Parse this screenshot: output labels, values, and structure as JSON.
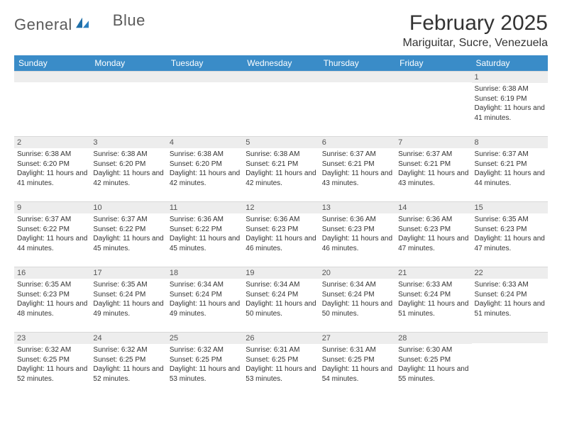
{
  "brand": {
    "word1": "General",
    "word2": "Blue"
  },
  "header": {
    "month_title": "February 2025",
    "location": "Mariguitar, Sucre, Venezuela"
  },
  "colors": {
    "header_bg": "#3a8cc8",
    "header_text": "#ffffff",
    "daynum_bg": "#ededed",
    "page_bg": "#ffffff",
    "text": "#333333"
  },
  "calendar": {
    "day_names": [
      "Sunday",
      "Monday",
      "Tuesday",
      "Wednesday",
      "Thursday",
      "Friday",
      "Saturday"
    ],
    "weeks": [
      [
        null,
        null,
        null,
        null,
        null,
        null,
        {
          "n": "1",
          "sr": "Sunrise: 6:38 AM",
          "ss": "Sunset: 6:19 PM",
          "dl": "Daylight: 11 hours and 41 minutes."
        }
      ],
      [
        {
          "n": "2",
          "sr": "Sunrise: 6:38 AM",
          "ss": "Sunset: 6:20 PM",
          "dl": "Daylight: 11 hours and 41 minutes."
        },
        {
          "n": "3",
          "sr": "Sunrise: 6:38 AM",
          "ss": "Sunset: 6:20 PM",
          "dl": "Daylight: 11 hours and 42 minutes."
        },
        {
          "n": "4",
          "sr": "Sunrise: 6:38 AM",
          "ss": "Sunset: 6:20 PM",
          "dl": "Daylight: 11 hours and 42 minutes."
        },
        {
          "n": "5",
          "sr": "Sunrise: 6:38 AM",
          "ss": "Sunset: 6:21 PM",
          "dl": "Daylight: 11 hours and 42 minutes."
        },
        {
          "n": "6",
          "sr": "Sunrise: 6:37 AM",
          "ss": "Sunset: 6:21 PM",
          "dl": "Daylight: 11 hours and 43 minutes."
        },
        {
          "n": "7",
          "sr": "Sunrise: 6:37 AM",
          "ss": "Sunset: 6:21 PM",
          "dl": "Daylight: 11 hours and 43 minutes."
        },
        {
          "n": "8",
          "sr": "Sunrise: 6:37 AM",
          "ss": "Sunset: 6:21 PM",
          "dl": "Daylight: 11 hours and 44 minutes."
        }
      ],
      [
        {
          "n": "9",
          "sr": "Sunrise: 6:37 AM",
          "ss": "Sunset: 6:22 PM",
          "dl": "Daylight: 11 hours and 44 minutes."
        },
        {
          "n": "10",
          "sr": "Sunrise: 6:37 AM",
          "ss": "Sunset: 6:22 PM",
          "dl": "Daylight: 11 hours and 45 minutes."
        },
        {
          "n": "11",
          "sr": "Sunrise: 6:36 AM",
          "ss": "Sunset: 6:22 PM",
          "dl": "Daylight: 11 hours and 45 minutes."
        },
        {
          "n": "12",
          "sr": "Sunrise: 6:36 AM",
          "ss": "Sunset: 6:23 PM",
          "dl": "Daylight: 11 hours and 46 minutes."
        },
        {
          "n": "13",
          "sr": "Sunrise: 6:36 AM",
          "ss": "Sunset: 6:23 PM",
          "dl": "Daylight: 11 hours and 46 minutes."
        },
        {
          "n": "14",
          "sr": "Sunrise: 6:36 AM",
          "ss": "Sunset: 6:23 PM",
          "dl": "Daylight: 11 hours and 47 minutes."
        },
        {
          "n": "15",
          "sr": "Sunrise: 6:35 AM",
          "ss": "Sunset: 6:23 PM",
          "dl": "Daylight: 11 hours and 47 minutes."
        }
      ],
      [
        {
          "n": "16",
          "sr": "Sunrise: 6:35 AM",
          "ss": "Sunset: 6:23 PM",
          "dl": "Daylight: 11 hours and 48 minutes."
        },
        {
          "n": "17",
          "sr": "Sunrise: 6:35 AM",
          "ss": "Sunset: 6:24 PM",
          "dl": "Daylight: 11 hours and 49 minutes."
        },
        {
          "n": "18",
          "sr": "Sunrise: 6:34 AM",
          "ss": "Sunset: 6:24 PM",
          "dl": "Daylight: 11 hours and 49 minutes."
        },
        {
          "n": "19",
          "sr": "Sunrise: 6:34 AM",
          "ss": "Sunset: 6:24 PM",
          "dl": "Daylight: 11 hours and 50 minutes."
        },
        {
          "n": "20",
          "sr": "Sunrise: 6:34 AM",
          "ss": "Sunset: 6:24 PM",
          "dl": "Daylight: 11 hours and 50 minutes."
        },
        {
          "n": "21",
          "sr": "Sunrise: 6:33 AM",
          "ss": "Sunset: 6:24 PM",
          "dl": "Daylight: 11 hours and 51 minutes."
        },
        {
          "n": "22",
          "sr": "Sunrise: 6:33 AM",
          "ss": "Sunset: 6:24 PM",
          "dl": "Daylight: 11 hours and 51 minutes."
        }
      ],
      [
        {
          "n": "23",
          "sr": "Sunrise: 6:32 AM",
          "ss": "Sunset: 6:25 PM",
          "dl": "Daylight: 11 hours and 52 minutes."
        },
        {
          "n": "24",
          "sr": "Sunrise: 6:32 AM",
          "ss": "Sunset: 6:25 PM",
          "dl": "Daylight: 11 hours and 52 minutes."
        },
        {
          "n": "25",
          "sr": "Sunrise: 6:32 AM",
          "ss": "Sunset: 6:25 PM",
          "dl": "Daylight: 11 hours and 53 minutes."
        },
        {
          "n": "26",
          "sr": "Sunrise: 6:31 AM",
          "ss": "Sunset: 6:25 PM",
          "dl": "Daylight: 11 hours and 53 minutes."
        },
        {
          "n": "27",
          "sr": "Sunrise: 6:31 AM",
          "ss": "Sunset: 6:25 PM",
          "dl": "Daylight: 11 hours and 54 minutes."
        },
        {
          "n": "28",
          "sr": "Sunrise: 6:30 AM",
          "ss": "Sunset: 6:25 PM",
          "dl": "Daylight: 11 hours and 55 minutes."
        },
        null
      ]
    ]
  }
}
